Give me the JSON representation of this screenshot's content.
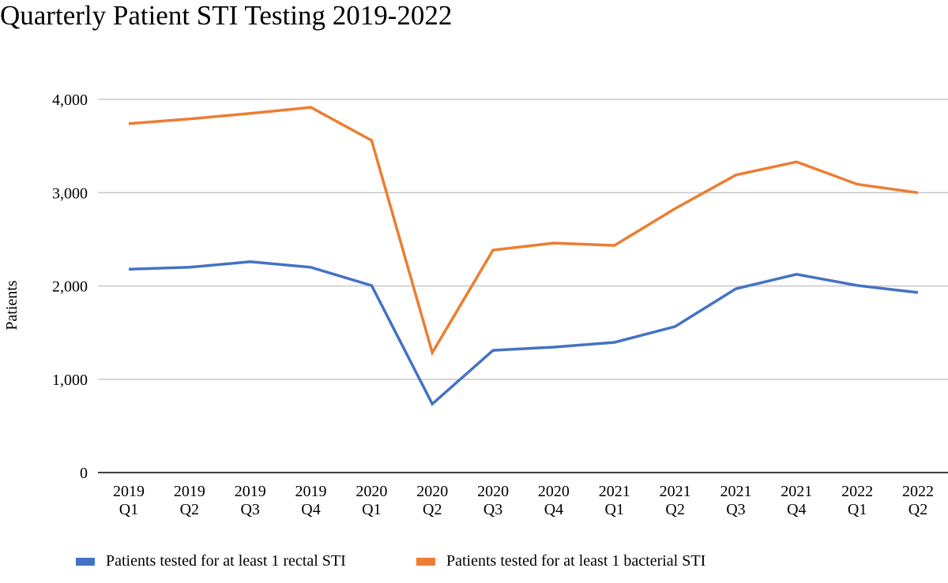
{
  "chart_data": {
    "type": "line",
    "title": "Quarterly Patient STI Testing 2019-2022",
    "xlabel": "",
    "ylabel": "Patients",
    "ylim": [
      0,
      4000
    ],
    "yticks": [
      0,
      1000,
      2000,
      3000,
      4000
    ],
    "ytick_labels": [
      "0",
      "1,000",
      "2,000",
      "3,000",
      "4,000"
    ],
    "grid": true,
    "legend_position": "bottom",
    "categories": [
      [
        "2019",
        "Q1"
      ],
      [
        "2019",
        "Q2"
      ],
      [
        "2019",
        "Q3"
      ],
      [
        "2019",
        "Q4"
      ],
      [
        "2020",
        "Q1"
      ],
      [
        "2020",
        "Q2"
      ],
      [
        "2020",
        "Q3"
      ],
      [
        "2020",
        "Q4"
      ],
      [
        "2021",
        "Q1"
      ],
      [
        "2021",
        "Q2"
      ],
      [
        "2021",
        "Q3"
      ],
      [
        "2021",
        "Q4"
      ],
      [
        "2022",
        "Q1"
      ],
      [
        "2022",
        "Q2"
      ]
    ],
    "series": [
      {
        "name": "Patients tested for at least 1 rectal STI",
        "color": "#4472C4",
        "values": [
          2180,
          2200,
          2260,
          2200,
          2005,
          735,
          1310,
          1345,
          1395,
          1565,
          1970,
          2125,
          2005,
          1930
        ]
      },
      {
        "name": "Patients tested for at least 1 bacterial STI",
        "color": "#ED7D31",
        "values": [
          3740,
          3790,
          3850,
          3915,
          3560,
          1285,
          2385,
          2460,
          2435,
          2830,
          3190,
          3330,
          3090,
          3000
        ]
      }
    ]
  }
}
